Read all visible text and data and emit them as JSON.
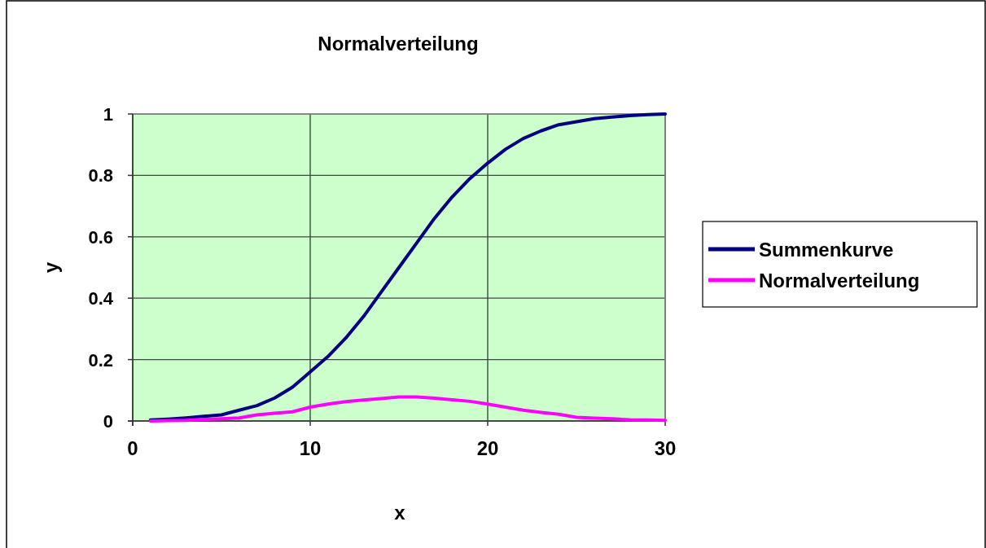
{
  "chart_data": {
    "type": "line",
    "title": "Normalverteilung",
    "xlabel": "x",
    "ylabel": "y",
    "x": [
      1,
      2,
      3,
      4,
      5,
      6,
      7,
      8,
      9,
      10,
      11,
      12,
      13,
      14,
      15,
      16,
      17,
      18,
      19,
      20,
      21,
      22,
      23,
      24,
      25,
      26,
      27,
      28,
      29,
      30
    ],
    "series": [
      {
        "name": "Summenkurve",
        "color": "#000080",
        "values": [
          0.003,
          0.006,
          0.01,
          0.015,
          0.02,
          0.035,
          0.05,
          0.075,
          0.11,
          0.16,
          0.21,
          0.27,
          0.34,
          0.42,
          0.5,
          0.58,
          0.66,
          0.73,
          0.79,
          0.84,
          0.885,
          0.92,
          0.945,
          0.965,
          0.975,
          0.985,
          0.99,
          0.995,
          0.998,
          1
        ]
      },
      {
        "name": "Normalverteilung",
        "color": "#ff00ff",
        "values": [
          0,
          0.001,
          0.002,
          0.005,
          0.007,
          0.01,
          0.02,
          0.025,
          0.03,
          0.045,
          0.055,
          0.063,
          0.068,
          0.073,
          0.078,
          0.078,
          0.074,
          0.069,
          0.064,
          0.055,
          0.045,
          0.035,
          0.028,
          0.022,
          0.012,
          0.009,
          0.007,
          0.004,
          0.003,
          0.002
        ]
      }
    ],
    "xlim": [
      0,
      30
    ],
    "xticks": [
      0,
      10,
      20,
      30
    ],
    "ylim": [
      0,
      1
    ],
    "yticks": [
      0,
      0.2,
      0.4,
      0.6,
      0.8,
      1
    ],
    "grid": true,
    "legend": "right",
    "marker": "none",
    "line_style": "solid"
  }
}
